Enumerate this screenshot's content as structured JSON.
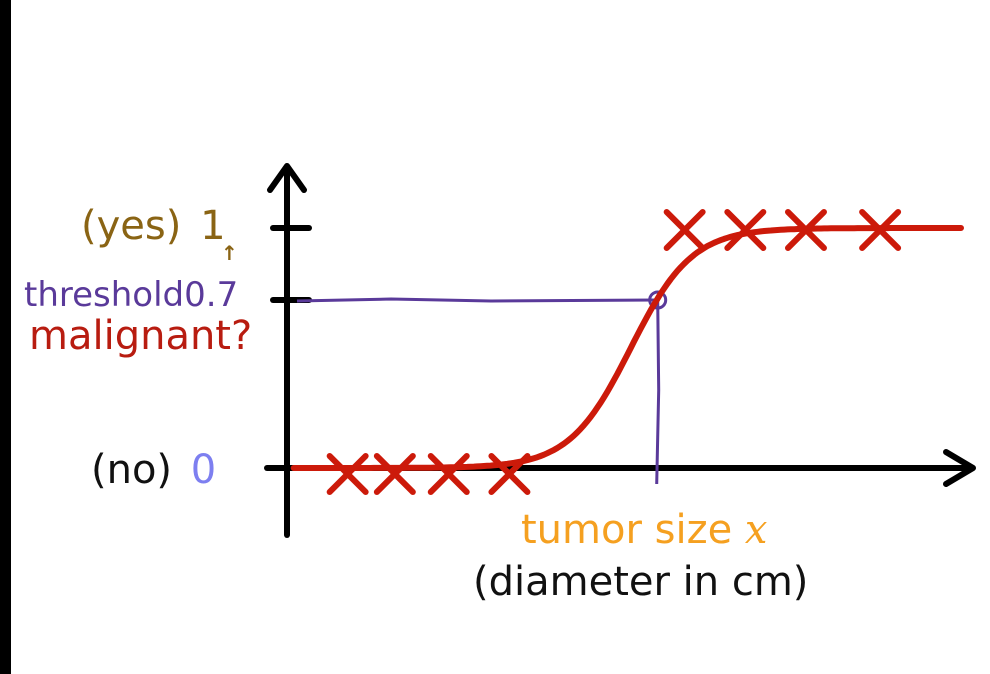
{
  "colors": {
    "axis": "#000000",
    "curve": "#cc1a0a",
    "marker": "#cc1a0a",
    "threshold": "#5a3a9a",
    "label_yes": "#8a6414",
    "label_no": "#7d7ff0",
    "label_malignant": "#b81c10",
    "label_x": "#f5a020",
    "label_text": "#111111"
  },
  "labels": {
    "yes_paren": "(yes)",
    "yes_value": "1",
    "arrow_up": "↑",
    "threshold_word": "threshold",
    "threshold_value": "0.7",
    "malignant": "malignant?",
    "no_paren": "(no)",
    "no_value": "0",
    "x_label": "tumor size",
    "x_var": "x",
    "x_sublabel": "(diameter in cm)"
  },
  "chart_data": {
    "type": "scatter",
    "title": "",
    "xlabel": "tumor size x (diameter in cm)",
    "ylabel": "malignant?",
    "xlim": [
      0,
      1
    ],
    "ylim": [
      0,
      1
    ],
    "y_ticks": [
      {
        "value": 1,
        "label": "1"
      },
      {
        "value": 0.7,
        "label": "0.7"
      },
      {
        "value": 0,
        "label": "0"
      }
    ],
    "grid": false,
    "series": [
      {
        "kind": "points",
        "marker": "x",
        "x": [
          0.09,
          0.16,
          0.24,
          0.33,
          0.59,
          0.68,
          0.77,
          0.88
        ],
        "y": [
          0,
          0,
          0,
          0,
          1,
          1,
          1,
          1
        ]
      },
      {
        "kind": "sigmoid-curve",
        "midpoint_x": 0.51,
        "steepness": 22
      }
    ],
    "threshold": {
      "y": 0.7,
      "x": 0.55
    }
  }
}
